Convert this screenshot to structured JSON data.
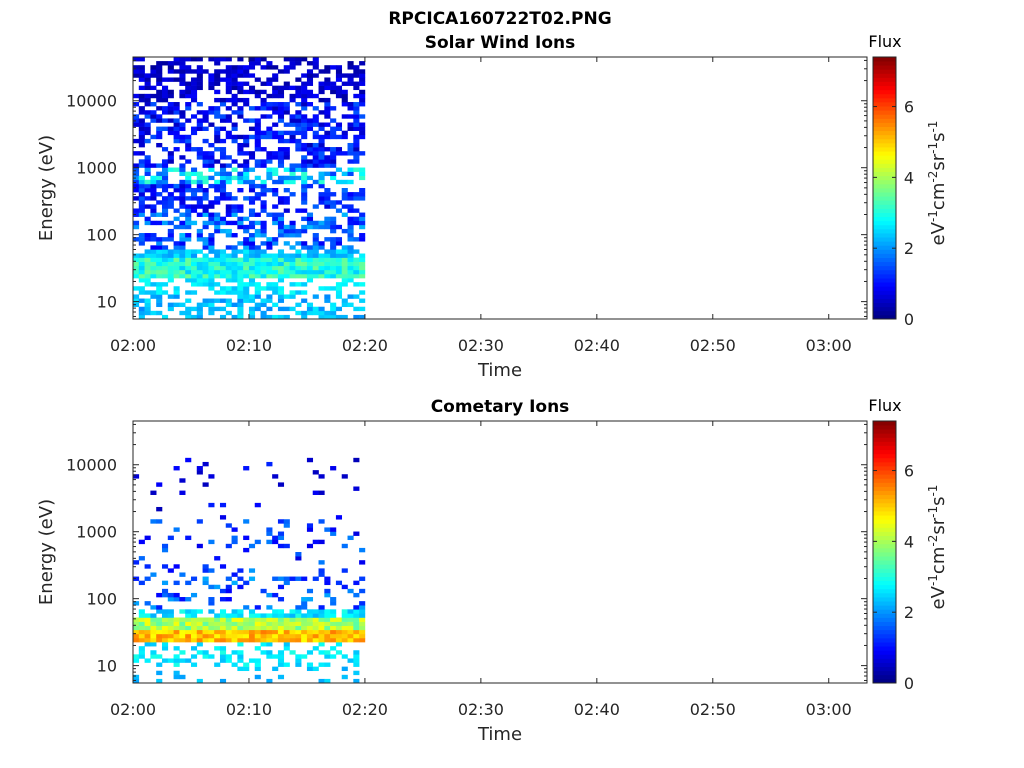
{
  "figure": {
    "title": "RPCICA160722T02.PNG"
  },
  "chart_data": [
    {
      "type": "heatmap",
      "title": "Solar Wind Ions",
      "xlabel": "Time",
      "ylabel": "Energy (eV)",
      "x_ticks": [
        "02:00",
        "02:10",
        "02:20",
        "02:30",
        "02:40",
        "02:50",
        "03:00"
      ],
      "x_range_minutes": [
        0,
        63.3
      ],
      "data_end_minute": 20,
      "y_scale": "log",
      "y_range": [
        5.5,
        45000
      ],
      "y_ticks": [
        10,
        100,
        1000,
        10000
      ],
      "y_tick_labels": [
        "10",
        "100",
        "1000",
        "10000"
      ],
      "colorbar": {
        "title": "Flux",
        "label": "eV-1cm-2sr-1s-1",
        "range": [
          0,
          7.4
        ],
        "ticks": [
          0,
          2,
          4,
          6
        ],
        "colormap": "jet"
      },
      "bands": [
        {
          "energy_range": [
            5.5,
            12
          ],
          "flux_range": [
            1.9,
            2.7
          ],
          "density": 0.55
        },
        {
          "energy_range": [
            12,
            22
          ],
          "flux_range": [
            2.3,
            2.9
          ],
          "density": 0.45
        },
        {
          "energy_range": [
            22,
            45
          ],
          "flux_range": [
            2.4,
            3.6
          ],
          "density": 1.0
        },
        {
          "energy_range": [
            45,
            60
          ],
          "flux_range": [
            2.0,
            2.7
          ],
          "density": 0.8
        },
        {
          "energy_range": [
            60,
            200
          ],
          "flux_range": [
            0.8,
            2.3
          ],
          "density": 0.5
        },
        {
          "energy_range": [
            200,
            600
          ],
          "flux_range": [
            0.6,
            1.7
          ],
          "density": 0.55
        },
        {
          "energy_range": [
            600,
            1000
          ],
          "flux_range": [
            1.3,
            3.2
          ],
          "density": 0.65
        },
        {
          "energy_range": [
            1000,
            10000
          ],
          "flux_range": [
            0.4,
            1.6
          ],
          "density": 0.55
        },
        {
          "energy_range": [
            10000,
            45000
          ],
          "flux_range": [
            0.2,
            0.9
          ],
          "density": 0.55
        }
      ]
    },
    {
      "type": "heatmap",
      "title": "Cometary Ions",
      "xlabel": "Time",
      "ylabel": "Energy (eV)",
      "x_ticks": [
        "02:00",
        "02:10",
        "02:20",
        "02:30",
        "02:40",
        "02:50",
        "03:00"
      ],
      "x_range_minutes": [
        0,
        63.3
      ],
      "data_end_minute": 20,
      "y_scale": "log",
      "y_range": [
        5.5,
        45000
      ],
      "y_ticks": [
        10,
        100,
        1000,
        10000
      ],
      "y_tick_labels": [
        "10",
        "100",
        "1000",
        "10000"
      ],
      "colorbar": {
        "title": "Flux",
        "label": "eV-1cm-2sr-1s-1",
        "range": [
          0,
          7.4
        ],
        "ticks": [
          0,
          2,
          4,
          6
        ],
        "colormap": "jet"
      },
      "bands": [
        {
          "energy_range": [
            5.5,
            10
          ],
          "flux_range": [
            2.0,
            2.6
          ],
          "density": 0.12
        },
        {
          "energy_range": [
            10,
            22
          ],
          "flux_range": [
            2.3,
            3.0
          ],
          "density": 0.35
        },
        {
          "energy_range": [
            22,
            32
          ],
          "flux_range": [
            4.6,
            5.6
          ],
          "density": 1.0
        },
        {
          "energy_range": [
            32,
            50
          ],
          "flux_range": [
            3.4,
            4.6
          ],
          "density": 1.0
        },
        {
          "energy_range": [
            50,
            65
          ],
          "flux_range": [
            2.2,
            3.0
          ],
          "density": 0.7
        },
        {
          "energy_range": [
            65,
            300
          ],
          "flux_range": [
            0.9,
            2.2
          ],
          "density": 0.22
        },
        {
          "energy_range": [
            300,
            1500
          ],
          "flux_range": [
            0.7,
            1.9
          ],
          "density": 0.12
        },
        {
          "energy_range": [
            1500,
            13000
          ],
          "flux_range": [
            0.4,
            1.2
          ],
          "density": 0.05
        }
      ]
    }
  ]
}
